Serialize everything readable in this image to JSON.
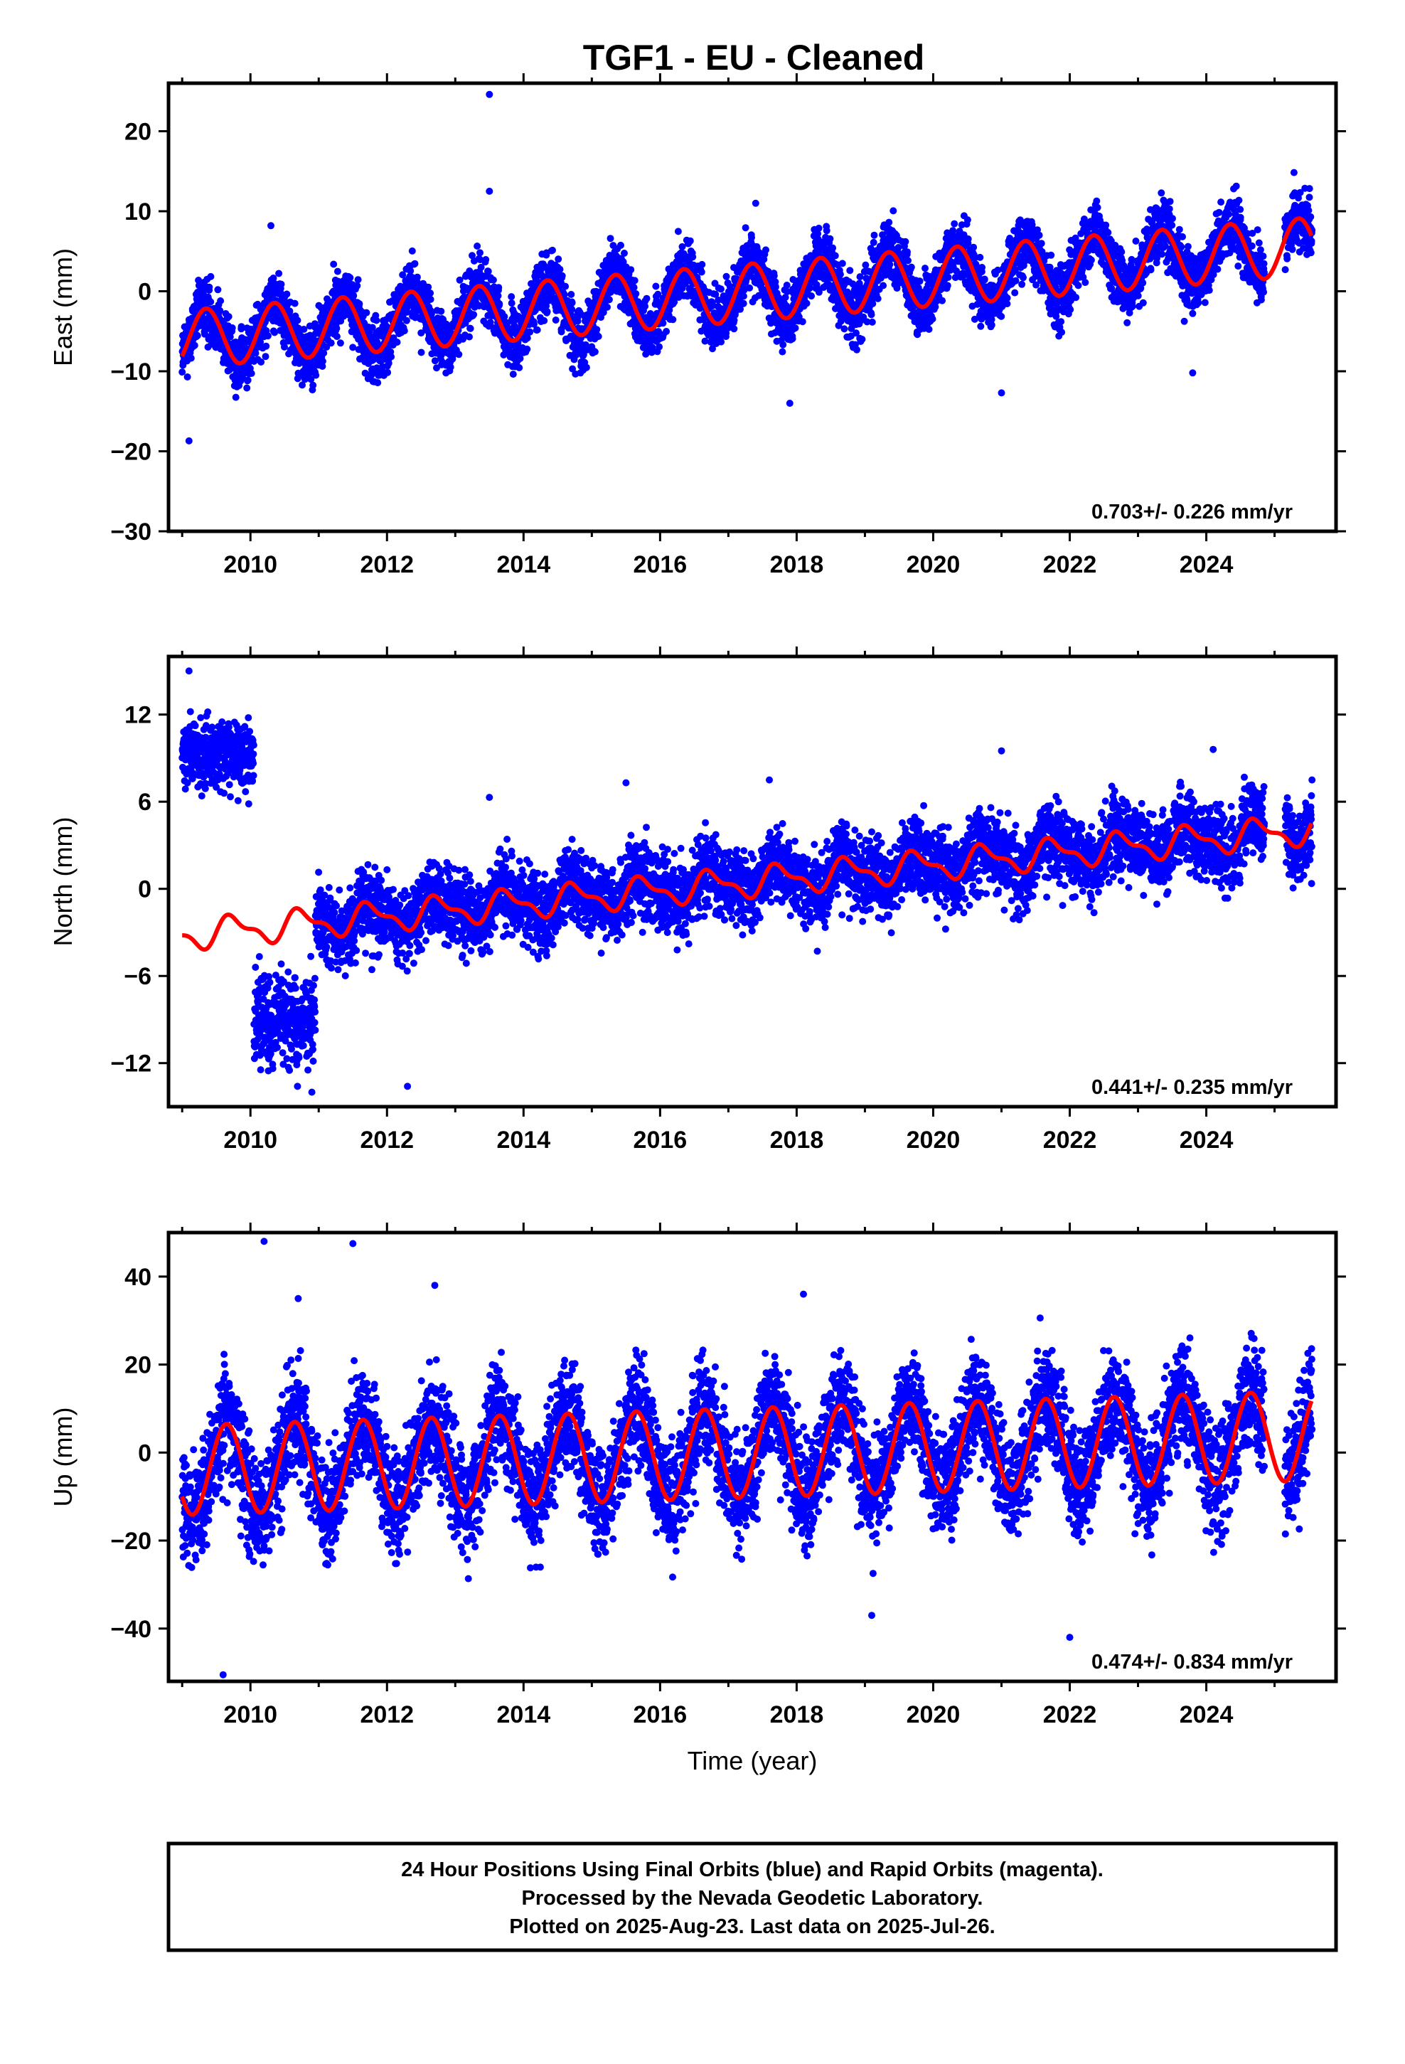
{
  "title": "TGF1  - EU - Cleaned",
  "colors": {
    "points": "#0000ff",
    "model": "#ff0000",
    "frame": "#000000"
  },
  "chart_data": [
    {
      "type": "scatter",
      "ylabel": "East (mm)",
      "xlabel": "",
      "xlim": [
        2008.8,
        2025.9
      ],
      "ylim": [
        -30,
        26
      ],
      "xticks": [
        2010,
        2012,
        2014,
        2016,
        2018,
        2020,
        2022,
        2024
      ],
      "yticks": [
        -30,
        -20,
        -10,
        0,
        10,
        20
      ],
      "rate_label": "0.703+/- 0.226 mm/yr",
      "model": {
        "t0": 2009.0,
        "offset": -6.0,
        "rate": 0.703,
        "amp_annual": 3.6,
        "amp_semiannual": 0.0,
        "phase_annual": 0.1,
        "t_end": 2025.55
      },
      "data": {
        "t_start": 2009.0,
        "t_end": 2025.55,
        "scatter_sd": 2.6,
        "gaps": [
          [
            2024.85,
            2025.15
          ]
        ],
        "steps": []
      },
      "series": [
        {
          "name": "",
          "x": [
            2013.5,
            2013.5,
            2009.1,
            2010.3,
            2017.4,
            2021.0,
            2024.4,
            2023.8,
            2017.9
          ],
          "y": [
            24.6,
            12.5,
            -18.7,
            8.2,
            11.0,
            -12.7,
            12.8,
            -10.2,
            -14.0
          ]
        }
      ]
    },
    {
      "type": "scatter",
      "ylabel": "North (mm)",
      "xlabel": "",
      "xlim": [
        2008.8,
        2025.9
      ],
      "ylim": [
        -15,
        16
      ],
      "xticks": [
        2010,
        2012,
        2014,
        2016,
        2018,
        2020,
        2022,
        2024
      ],
      "yticks": [
        -12,
        -6,
        0,
        6,
        12
      ],
      "rate_label": "0.441+/- 0.235 mm/yr",
      "model": {
        "t0": 2009.0,
        "offset": -3.2,
        "rate": 0.441,
        "amp_annual": 0.9,
        "amp_semiannual": 0.4,
        "phase_annual": 0.5,
        "t_end": 2025.55
      },
      "data": {
        "t_start": 2009.0,
        "t_end": 2025.55,
        "scatter_sd": 1.8,
        "gaps": [
          [
            2024.85,
            2025.15
          ]
        ],
        "steps": [
          {
            "from": 2009.0,
            "to": 2010.05,
            "level": 9.3,
            "sd": 1.6
          },
          {
            "from": 2010.05,
            "to": 2010.95,
            "level": -9.0,
            "sd": 2.0
          }
        ]
      },
      "series": [
        {
          "name": "",
          "x": [
            2009.1,
            2013.5,
            2021.0,
            2024.1,
            2015.5,
            2017.6,
            2010.9,
            2012.3
          ],
          "y": [
            15.0,
            6.3,
            9.5,
            9.6,
            7.3,
            7.5,
            -14.0,
            -13.6
          ]
        }
      ]
    },
    {
      "type": "scatter",
      "ylabel": "Up (mm)",
      "xlabel": "Time (year)",
      "xlim": [
        2008.8,
        2025.9
      ],
      "ylim": [
        -52,
        50
      ],
      "xticks": [
        2010,
        2012,
        2014,
        2016,
        2018,
        2020,
        2022,
        2024
      ],
      "yticks": [
        -40,
        -20,
        0,
        20,
        40
      ],
      "rate_label": "0.474+/- 0.834 mm/yr",
      "model": {
        "t0": 2009.0,
        "offset": -4.0,
        "rate": 0.474,
        "amp_annual": 10.2,
        "amp_semiannual": 0.0,
        "phase_annual": 0.4,
        "t_end": 2025.55
      },
      "data": {
        "t_start": 2009.0,
        "t_end": 2025.55,
        "scatter_sd": 8.5,
        "gaps": [
          [
            2024.85,
            2025.15
          ]
        ],
        "steps": []
      },
      "series": [
        {
          "name": "",
          "x": [
            2010.2,
            2011.5,
            2009.6,
            2018.1,
            2022.0,
            2019.1,
            2010.7,
            2012.7
          ],
          "y": [
            48.0,
            47.5,
            -50.5,
            36.0,
            -42.0,
            -37.0,
            35.0,
            38.0
          ]
        }
      ]
    }
  ],
  "footer": {
    "line1": "24 Hour Positions Using Final Orbits (blue) and Rapid Orbits (magenta).",
    "line2": "Processed by the Nevada Geodetic Laboratory.",
    "line3": "Plotted on 2025-Aug-23. Last data on 2025-Jul-26."
  }
}
